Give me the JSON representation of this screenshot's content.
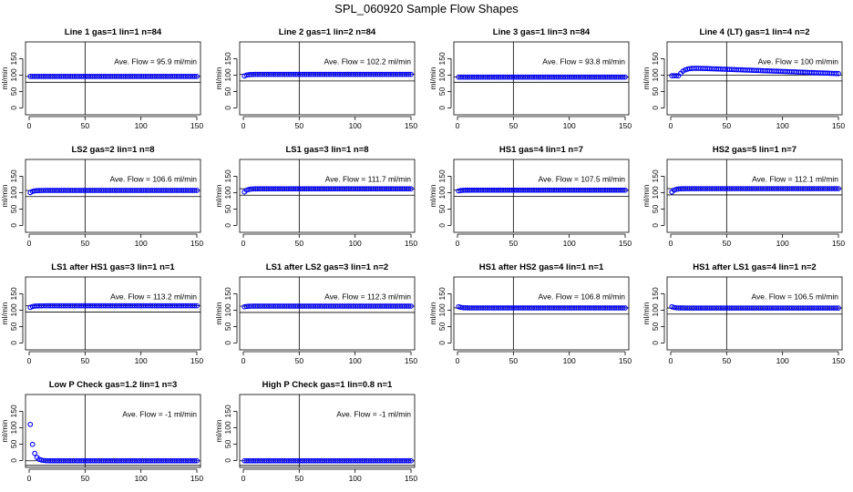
{
  "figure": {
    "title": "SPL_060920  Sample Flow Shapes",
    "ylabel": "ml/min",
    "annotation_prefix": "Ave. Flow = ",
    "annotation_suffix": " ml/min",
    "point_color": "#0000ff"
  },
  "chart_data": [
    {
      "type": "scatter",
      "title": "Line 1 gas=1 lin=1 n=84",
      "ave_flow": "95.9",
      "xlim": [
        0,
        150
      ],
      "ylim": [
        -10,
        190
      ],
      "xticks": [
        0,
        50,
        100,
        150
      ],
      "yticks": [
        0,
        50,
        100,
        150
      ],
      "hlines": [
        78,
        95.9
      ],
      "vline": 50,
      "shape": {
        "kind": "flat",
        "level": 95.9,
        "start": 95.9
      }
    },
    {
      "type": "scatter",
      "title": "Line 2 gas=1 lin=2 n=84",
      "ave_flow": "102.2",
      "xlim": [
        0,
        150
      ],
      "ylim": [
        -10,
        190
      ],
      "xticks": [
        0,
        50,
        100,
        150
      ],
      "yticks": [
        0,
        50,
        100,
        150
      ],
      "hlines": [
        82,
        102.2
      ],
      "vline": 50,
      "shape": {
        "kind": "flat",
        "level": 102.2,
        "start": 95
      }
    },
    {
      "type": "scatter",
      "title": "Line 3 gas=1 lin=3 n=84",
      "ave_flow": "93.8",
      "xlim": [
        0,
        150
      ],
      "ylim": [
        -10,
        190
      ],
      "xticks": [
        0,
        50,
        100,
        150
      ],
      "yticks": [
        0,
        50,
        100,
        150
      ],
      "hlines": [
        78,
        93.8
      ],
      "vline": 50,
      "shape": {
        "kind": "flat",
        "level": 93.8,
        "start": 93.8
      }
    },
    {
      "type": "scatter",
      "title": "Line 4 (LT) gas=1 lin=4 n=2",
      "ave_flow": "100",
      "xlim": [
        0,
        150
      ],
      "ylim": [
        -10,
        190
      ],
      "xticks": [
        0,
        50,
        100,
        150
      ],
      "yticks": [
        0,
        50,
        100,
        150
      ],
      "hlines": [
        82,
        100
      ],
      "vline": 50,
      "shape": {
        "kind": "rise",
        "level": 98,
        "peak": 122,
        "start": 0
      }
    },
    {
      "type": "scatter",
      "title": "LS2 gas=2 lin=1 n=8",
      "ave_flow": "106.6",
      "xlim": [
        0,
        150
      ],
      "ylim": [
        -10,
        190
      ],
      "xticks": [
        0,
        50,
        100,
        150
      ],
      "yticks": [
        0,
        50,
        100,
        150
      ],
      "hlines": [
        88,
        106.6
      ],
      "vline": 50,
      "shape": {
        "kind": "flat",
        "level": 106.6,
        "start": 97
      }
    },
    {
      "type": "scatter",
      "title": "LS1 gas=3 lin=1 n=8",
      "ave_flow": "111.7",
      "xlim": [
        0,
        150
      ],
      "ylim": [
        -10,
        190
      ],
      "xticks": [
        0,
        50,
        100,
        150
      ],
      "yticks": [
        0,
        50,
        100,
        150
      ],
      "hlines": [
        92,
        111.7
      ],
      "vline": 50,
      "shape": {
        "kind": "flat",
        "level": 111.7,
        "start": 97
      }
    },
    {
      "type": "scatter",
      "title": "HS1 gas=4 lin=1 n=7",
      "ave_flow": "107.5",
      "xlim": [
        0,
        150
      ],
      "ylim": [
        -10,
        190
      ],
      "xticks": [
        0,
        50,
        100,
        150
      ],
      "yticks": [
        0,
        50,
        100,
        150
      ],
      "hlines": [
        89,
        107.5
      ],
      "vline": 50,
      "shape": {
        "kind": "flat",
        "level": 107.5,
        "start": 104
      }
    },
    {
      "type": "scatter",
      "title": "HS2 gas=5 lin=1 n=7",
      "ave_flow": "112.1",
      "xlim": [
        0,
        150
      ],
      "ylim": [
        -10,
        190
      ],
      "xticks": [
        0,
        50,
        100,
        150
      ],
      "yticks": [
        0,
        50,
        100,
        150
      ],
      "hlines": [
        93,
        112.1
      ],
      "vline": 50,
      "shape": {
        "kind": "flat",
        "level": 112.1,
        "start": 97
      }
    },
    {
      "type": "scatter",
      "title": "LS1 after HS1 gas=3 lin=1 n=1",
      "ave_flow": "113.2",
      "xlim": [
        0,
        150
      ],
      "ylim": [
        -10,
        190
      ],
      "xticks": [
        0,
        50,
        100,
        150
      ],
      "yticks": [
        0,
        50,
        100,
        150
      ],
      "hlines": [
        94,
        113.2
      ],
      "vline": 50,
      "shape": {
        "kind": "flat",
        "level": 113.2,
        "start": 106
      }
    },
    {
      "type": "scatter",
      "title": "LS1 after LS2 gas=3 lin=1 n=2",
      "ave_flow": "112.3",
      "xlim": [
        0,
        150
      ],
      "ylim": [
        -10,
        190
      ],
      "xticks": [
        0,
        50,
        100,
        150
      ],
      "yticks": [
        0,
        50,
        100,
        150
      ],
      "hlines": [
        93,
        112.3
      ],
      "vline": 50,
      "shape": {
        "kind": "flat",
        "level": 112.3,
        "start": 109
      }
    },
    {
      "type": "scatter",
      "title": "HS1 after HS2 gas=4 lin=1 n=1",
      "ave_flow": "106.8",
      "xlim": [
        0,
        150
      ],
      "ylim": [
        -10,
        190
      ],
      "xticks": [
        0,
        50,
        100,
        150
      ],
      "yticks": [
        0,
        50,
        100,
        150
      ],
      "hlines": [
        88,
        106.8
      ],
      "vline": 50,
      "shape": {
        "kind": "flat",
        "level": 106.8,
        "start": 112
      }
    },
    {
      "type": "scatter",
      "title": "HS1 after LS1 gas=4 lin=1 n=2",
      "ave_flow": "106.5",
      "xlim": [
        0,
        150
      ],
      "ylim": [
        -10,
        190
      ],
      "xticks": [
        0,
        50,
        100,
        150
      ],
      "yticks": [
        0,
        50,
        100,
        150
      ],
      "hlines": [
        88,
        106.5
      ],
      "vline": 50,
      "shape": {
        "kind": "flat",
        "level": 106.5,
        "start": 112
      }
    },
    {
      "type": "scatter",
      "title": "Low P Check gas=1.2 lin=1 n=3",
      "ave_flow": "-1",
      "xlim": [
        0,
        150
      ],
      "ylim": [
        -10,
        190
      ],
      "xticks": [
        0,
        50,
        100,
        150
      ],
      "yticks": [
        0,
        50,
        100,
        150
      ],
      "hlines": [
        -1,
        -15
      ],
      "vline": 50,
      "shape": {
        "kind": "decay",
        "level": -1,
        "start": 110
      }
    },
    {
      "type": "scatter",
      "title": "High P Check gas=1 lin=0.8 n=1",
      "ave_flow": "-1",
      "xlim": [
        0,
        150
      ],
      "ylim": [
        -10,
        190
      ],
      "xticks": [
        0,
        50,
        100,
        150
      ],
      "yticks": [
        0,
        50,
        100,
        150
      ],
      "hlines": [
        -1,
        -15
      ],
      "vline": 50,
      "shape": {
        "kind": "flat",
        "level": -1,
        "start": -1
      }
    }
  ]
}
